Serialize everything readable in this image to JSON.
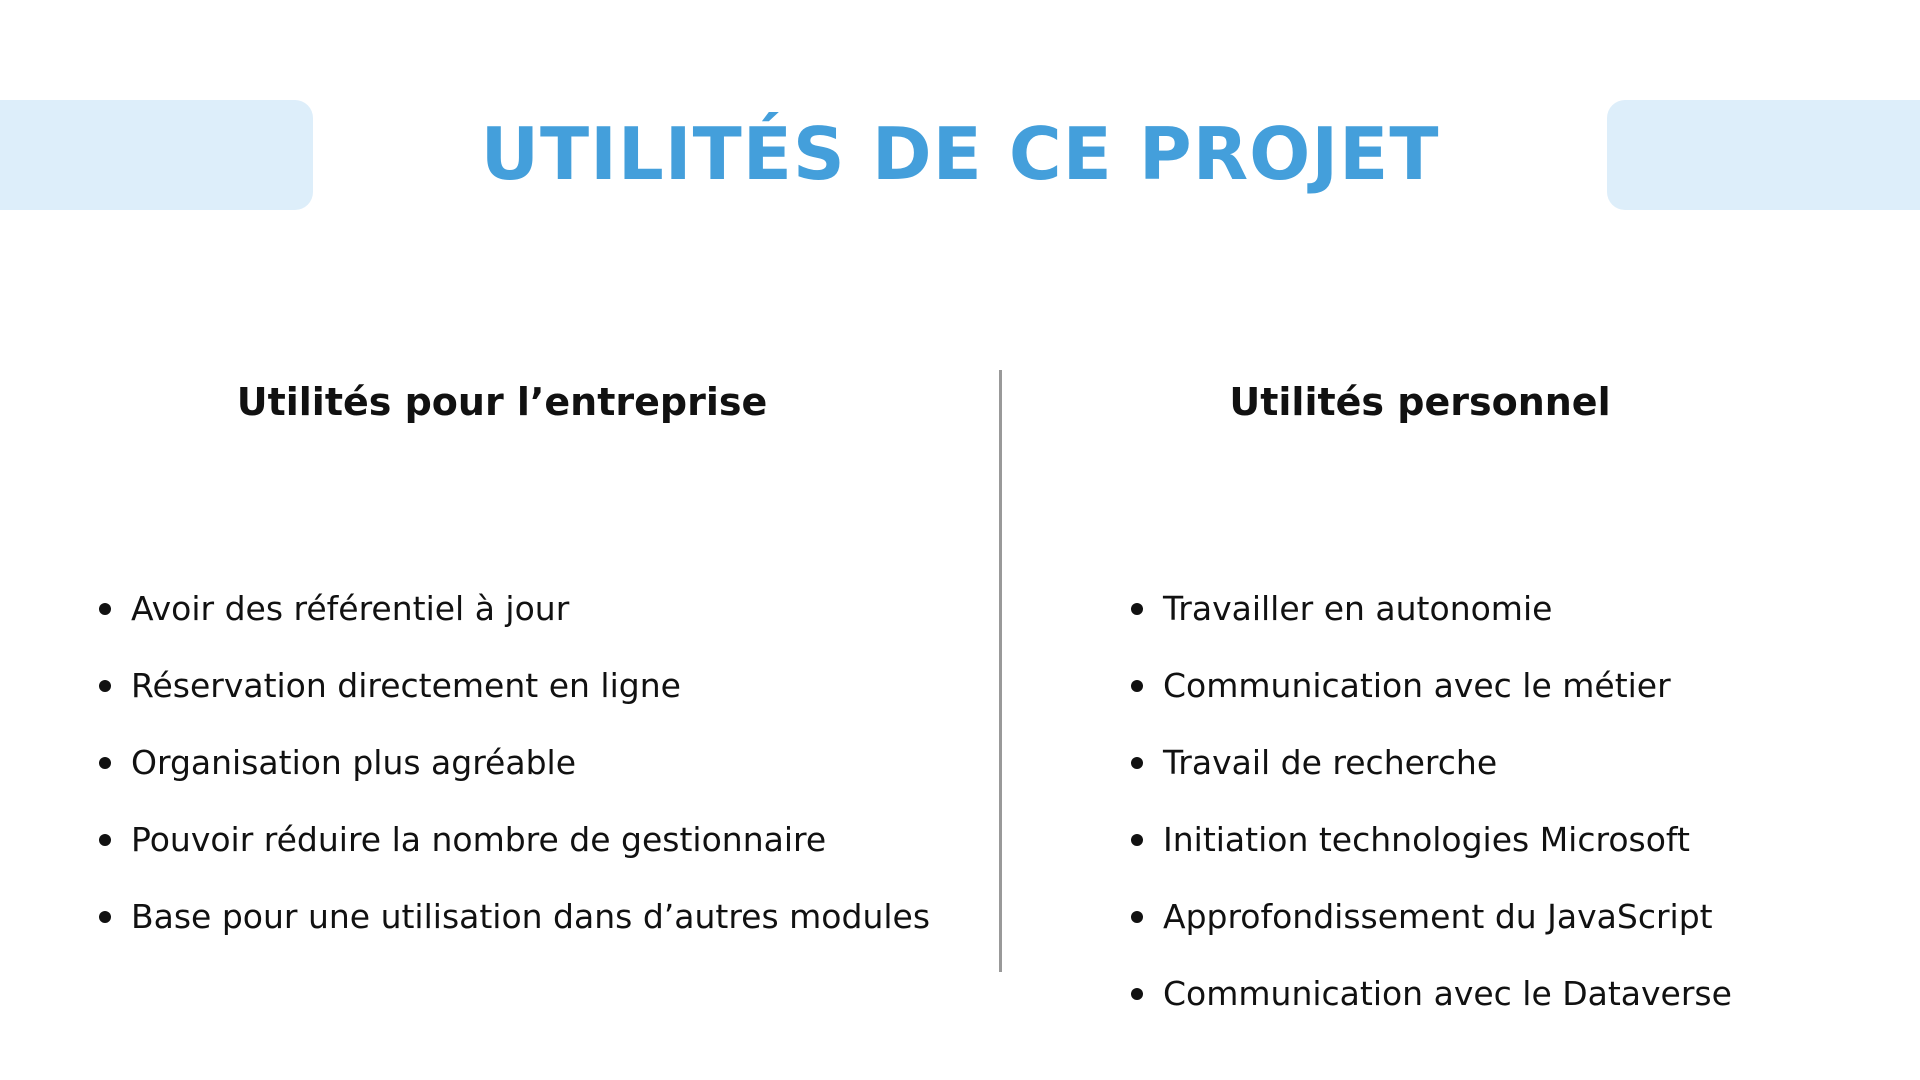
{
  "title": "UTILITÉS DE CE PROJET",
  "colors": {
    "title": "#449fdb",
    "decor": "#ddeefa",
    "divider": "#999999",
    "text": "#111111"
  },
  "left_column": {
    "heading": "Utilités pour l’entreprise",
    "items": [
      "Avoir des référentiel à jour",
      "Réservation directement en ligne",
      "Organisation plus agréable",
      "Pouvoir réduire la nombre de gestionnaire",
      "Base pour une utilisation dans d’autres modules"
    ]
  },
  "right_column": {
    "heading": "Utilités personnel",
    "items": [
      "Travailler en autonomie",
      "Communication avec le métier",
      "Travail de recherche",
      "Initiation technologies Microsoft",
      "Approfondissement du JavaScript",
      "Communication avec le Dataverse"
    ]
  }
}
